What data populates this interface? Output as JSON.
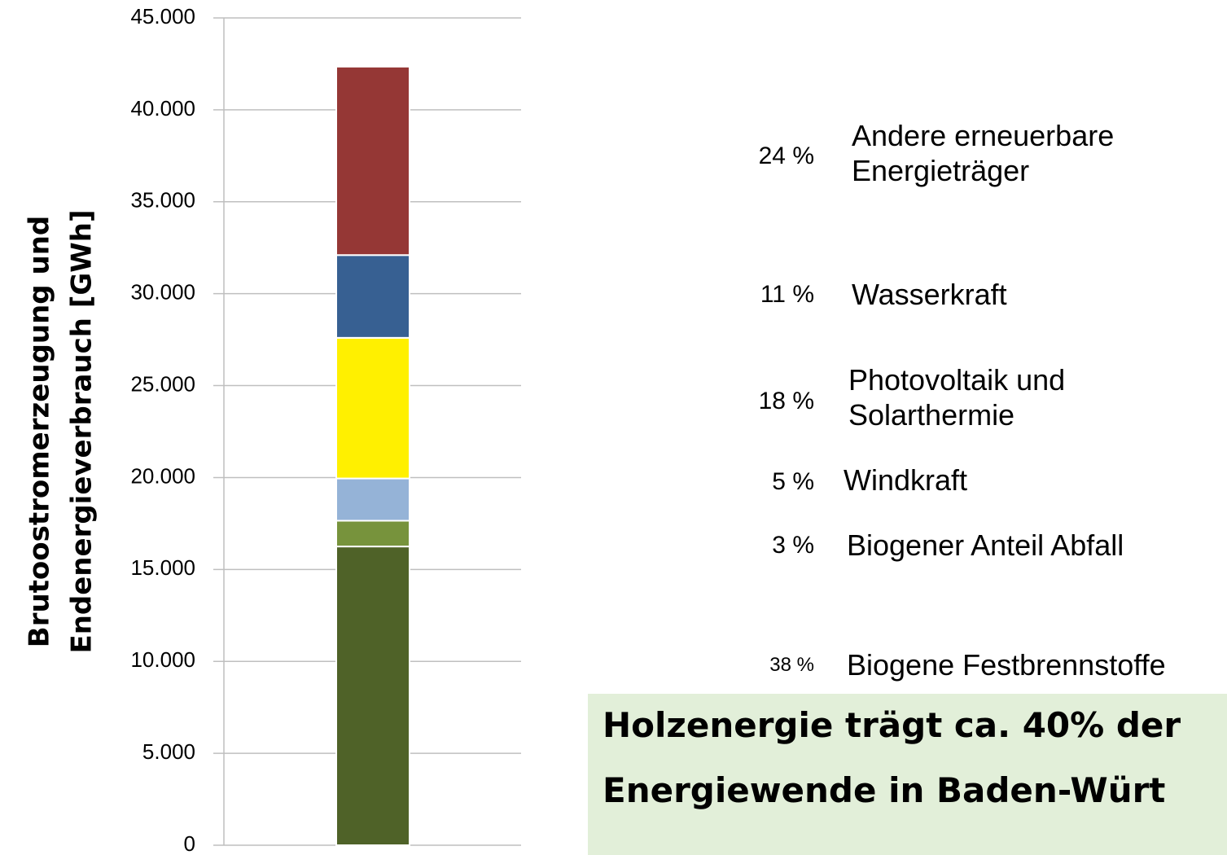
{
  "chart_data": {
    "type": "stacked_bar",
    "y_label": [
      "Brutoostromerzeugung und",
      "Endenergieverbrauch [GWh]"
    ],
    "categories": [
      null
    ],
    "ylim": [
      0,
      45000
    ],
    "yticks": [
      0,
      {
        "value": 5000,
        "label": "5.000"
      },
      {
        "value": 10000,
        "label": "10.000"
      },
      {
        "value": 15000,
        "label": "15.000"
      },
      {
        "value": 20000,
        "label": "20.000"
      },
      {
        "value": 25000,
        "label": "25.000"
      },
      {
        "value": 30000,
        "label": "30.000"
      },
      {
        "value": 35000,
        "label": "35.000"
      },
      {
        "value": 40000,
        "label": "40.000"
      },
      {
        "value": 45000,
        "label": "45.000"
      }
    ],
    "grid": true,
    "series": [
      {
        "name": "Biogene Festbrennstoffe",
        "color": "#4f6228",
        "values": [
          16250
        ],
        "value_labels": [
          "38 %"
        ]
      },
      {
        "name": "Biogener Anteil Abfall",
        "color": "#77933c",
        "values": [
          1400
        ],
        "value_labels": [
          "3 %"
        ]
      },
      {
        "name": "Windkraft",
        "color": "#95b3d7",
        "values": [
          2300
        ],
        "value_labels": [
          "5 %"
        ]
      },
      {
        "name": "Photovoltaik und Solarthermie",
        "color": "#fff000",
        "values": [
          7650
        ],
        "value_labels": [
          "18 %"
        ]
      },
      {
        "name": "Wasserkraft",
        "color": "#376092",
        "values": [
          4500
        ],
        "value_labels": [
          "11 %"
        ]
      },
      {
        "name": "Andere erneuerbare Energieträger",
        "color": "#953735",
        "values": [
          10250
        ],
        "value_labels": [
          "24 %"
        ]
      }
    ],
    "annotation": [
      "Holzenergie trägt ca. 40% der",
      "Energiewende in Baden-Würt"
    ]
  }
}
